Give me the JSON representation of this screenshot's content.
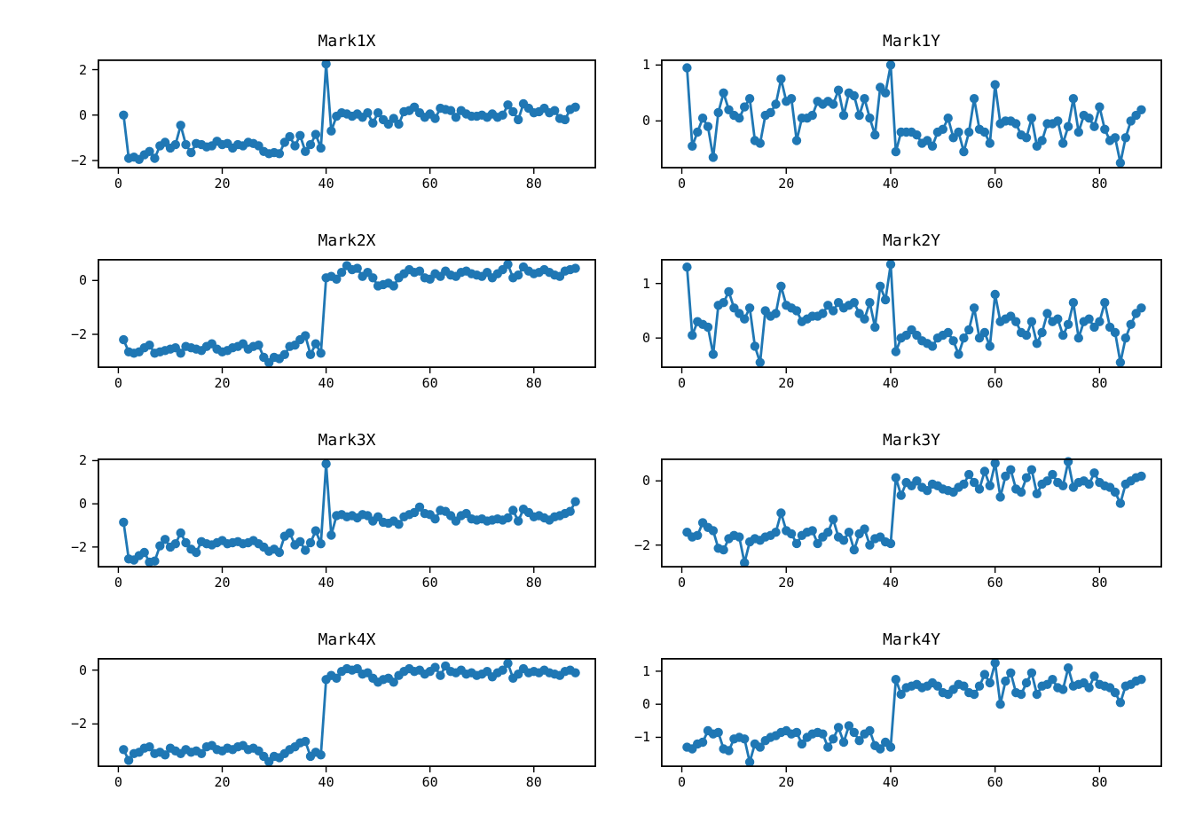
{
  "figure": {
    "background": "#ffffff",
    "series_color": "#1f77b4",
    "axis_color": "#000000"
  },
  "chart_data": [
    {
      "type": "line",
      "title": "Mark1X",
      "marker": "circle",
      "grid": false,
      "legend": null,
      "x_start": 1,
      "x_step": 1,
      "xlim": [
        -4,
        92
      ],
      "ylim": [
        -2.35,
        2.45
      ],
      "xticks": [
        0,
        20,
        40,
        60,
        80
      ],
      "xticklabels": [
        "0",
        "20",
        "40",
        "60",
        "80"
      ],
      "yticks": [
        -2,
        0,
        2
      ],
      "yticklabels": [
        "−2",
        "0",
        "2"
      ],
      "values": [
        0,
        -1.9,
        -1.85,
        -1.95,
        -1.75,
        -1.6,
        -1.9,
        -1.35,
        -1.2,
        -1.45,
        -1.3,
        -0.45,
        -1.3,
        -1.65,
        -1.25,
        -1.3,
        -1.4,
        -1.35,
        -1.15,
        -1.3,
        -1.25,
        -1.45,
        -1.3,
        -1.35,
        -1.2,
        -1.25,
        -1.35,
        -1.6,
        -1.7,
        -1.65,
        -1.7,
        -1.2,
        -0.95,
        -1.35,
        -0.9,
        -1.6,
        -1.3,
        -0.85,
        -1.45,
        2.25,
        -0.7,
        -0.05,
        0.1,
        0.05,
        -0.05,
        0.05,
        -0.1,
        0.1,
        -0.35,
        0.1,
        -0.2,
        -0.4,
        -0.15,
        -0.4,
        0.15,
        0.2,
        0.35,
        0.1,
        -0.1,
        0.05,
        -0.15,
        0.3,
        0.25,
        0.2,
        -0.1,
        0.2,
        0.05,
        -0.05,
        -0.05,
        0,
        -0.1,
        0.05,
        -0.1,
        0,
        0.45,
        0.15,
        -0.2,
        0.5,
        0.3,
        0.1,
        0.15,
        0.3,
        0.1,
        0.2,
        -0.15,
        -0.2,
        0.25,
        0.35
      ]
    },
    {
      "type": "line",
      "title": "Mark1Y",
      "marker": "circle",
      "grid": false,
      "legend": null,
      "x_start": 1,
      "x_step": 1,
      "xlim": [
        -4,
        92
      ],
      "ylim": [
        -0.85,
        1.1
      ],
      "xticks": [
        0,
        20,
        40,
        60,
        80
      ],
      "xticklabels": [
        "0",
        "20",
        "40",
        "60",
        "80"
      ],
      "yticks": [
        0,
        1
      ],
      "yticklabels": [
        "0",
        "1"
      ],
      "values": [
        0.95,
        -0.45,
        -0.2,
        0.05,
        -0.1,
        -0.65,
        0.15,
        0.5,
        0.2,
        0.1,
        0.05,
        0.25,
        0.4,
        -0.35,
        -0.4,
        0.1,
        0.15,
        0.3,
        0.75,
        0.35,
        0.4,
        -0.35,
        0.05,
        0.05,
        0.1,
        0.35,
        0.3,
        0.35,
        0.3,
        0.55,
        0.1,
        0.5,
        0.45,
        0.1,
        0.4,
        0.05,
        -0.25,
        0.6,
        0.5,
        1.0,
        -0.55,
        -0.2,
        -0.2,
        -0.2,
        -0.25,
        -0.4,
        -0.35,
        -0.45,
        -0.2,
        -0.15,
        0.05,
        -0.3,
        -0.2,
        -0.55,
        -0.2,
        0.4,
        -0.15,
        -0.2,
        -0.4,
        0.65,
        -0.05,
        0,
        0,
        -0.05,
        -0.25,
        -0.3,
        0.05,
        -0.45,
        -0.35,
        -0.05,
        -0.05,
        0,
        -0.4,
        -0.1,
        0.4,
        -0.2,
        0.1,
        0.05,
        -0.1,
        0.25,
        -0.15,
        -0.35,
        -0.3,
        -0.75,
        -0.3,
        0,
        0.1,
        0.2
      ]
    },
    {
      "type": "line",
      "title": "Mark2X",
      "marker": "circle",
      "grid": false,
      "legend": null,
      "x_start": 1,
      "x_step": 1,
      "xlim": [
        -4,
        92
      ],
      "ylim": [
        -3.25,
        0.8
      ],
      "xticks": [
        0,
        20,
        40,
        60,
        80
      ],
      "xticklabels": [
        "0",
        "20",
        "40",
        "60",
        "80"
      ],
      "yticks": [
        -2,
        0
      ],
      "yticklabels": [
        "−2",
        "0"
      ],
      "values": [
        -2.2,
        -2.65,
        -2.7,
        -2.65,
        -2.5,
        -2.4,
        -2.7,
        -2.65,
        -2.6,
        -2.55,
        -2.5,
        -2.7,
        -2.45,
        -2.5,
        -2.55,
        -2.6,
        -2.45,
        -2.35,
        -2.55,
        -2.65,
        -2.6,
        -2.5,
        -2.45,
        -2.35,
        -2.55,
        -2.45,
        -2.4,
        -2.85,
        -3.05,
        -2.85,
        -2.9,
        -2.75,
        -2.45,
        -2.4,
        -2.2,
        -2.05,
        -2.75,
        -2.35,
        -2.7,
        0.1,
        0.15,
        0.05,
        0.3,
        0.55,
        0.4,
        0.45,
        0.15,
        0.3,
        0.1,
        -0.2,
        -0.15,
        -0.1,
        -0.2,
        0.1,
        0.25,
        0.4,
        0.3,
        0.35,
        0.1,
        0.05,
        0.25,
        0.15,
        0.35,
        0.2,
        0.15,
        0.3,
        0.35,
        0.25,
        0.2,
        0.15,
        0.3,
        0.1,
        0.25,
        0.4,
        0.6,
        0.1,
        0.2,
        0.5,
        0.35,
        0.25,
        0.3,
        0.4,
        0.3,
        0.2,
        0.15,
        0.35,
        0.4,
        0.45
      ]
    },
    {
      "type": "line",
      "title": "Mark2Y",
      "marker": "circle",
      "grid": false,
      "legend": null,
      "x_start": 1,
      "x_step": 1,
      "xlim": [
        -4,
        92
      ],
      "ylim": [
        -0.55,
        1.45
      ],
      "xticks": [
        0,
        20,
        40,
        60,
        80
      ],
      "xticklabels": [
        "0",
        "20",
        "40",
        "60",
        "80"
      ],
      "yticks": [
        0,
        1
      ],
      "yticklabels": [
        "0",
        "1"
      ],
      "values": [
        1.3,
        0.05,
        0.3,
        0.25,
        0.2,
        -0.3,
        0.6,
        0.65,
        0.85,
        0.55,
        0.45,
        0.35,
        0.55,
        -0.15,
        -0.45,
        0.5,
        0.4,
        0.45,
        0.95,
        0.6,
        0.55,
        0.5,
        0.3,
        0.35,
        0.4,
        0.4,
        0.45,
        0.6,
        0.5,
        0.65,
        0.55,
        0.6,
        0.65,
        0.45,
        0.35,
        0.65,
        0.2,
        0.95,
        0.7,
        1.35,
        -0.25,
        0,
        0.05,
        0.15,
        0.05,
        -0.05,
        -0.1,
        -0.15,
        0,
        0.05,
        0.1,
        -0.05,
        -0.3,
        0,
        0.15,
        0.55,
        0,
        0.1,
        -0.15,
        0.8,
        0.3,
        0.35,
        0.4,
        0.3,
        0.1,
        0.05,
        0.3,
        -0.1,
        0.1,
        0.45,
        0.3,
        0.35,
        0.05,
        0.25,
        0.65,
        0,
        0.3,
        0.35,
        0.2,
        0.3,
        0.65,
        0.2,
        0.1,
        -0.45,
        0,
        0.25,
        0.45,
        0.55
      ]
    },
    {
      "type": "line",
      "title": "Mark3X",
      "marker": "circle",
      "grid": false,
      "legend": null,
      "x_start": 1,
      "x_step": 1,
      "xlim": [
        -4,
        92
      ],
      "ylim": [
        -2.95,
        2.1
      ],
      "xticks": [
        0,
        20,
        40,
        60,
        80
      ],
      "xticklabels": [
        "0",
        "20",
        "40",
        "60",
        "80"
      ],
      "yticks": [
        -2,
        0,
        2
      ],
      "yticklabels": [
        "−2",
        "0",
        "2"
      ],
      "values": [
        -0.85,
        -2.55,
        -2.6,
        -2.4,
        -2.25,
        -2.7,
        -2.65,
        -1.95,
        -1.65,
        -2.0,
        -1.85,
        -1.35,
        -1.8,
        -2.1,
        -2.25,
        -1.75,
        -1.85,
        -1.9,
        -1.8,
        -1.7,
        -1.85,
        -1.8,
        -1.75,
        -1.85,
        -1.8,
        -1.7,
        -1.85,
        -2.0,
        -2.2,
        -2.1,
        -2.25,
        -1.5,
        -1.35,
        -1.9,
        -1.75,
        -2.15,
        -1.8,
        -1.25,
        -1.85,
        1.85,
        -1.45,
        -0.55,
        -0.5,
        -0.6,
        -0.55,
        -0.65,
        -0.5,
        -0.55,
        -0.8,
        -0.6,
        -0.85,
        -0.9,
        -0.8,
        -0.95,
        -0.6,
        -0.5,
        -0.4,
        -0.15,
        -0.45,
        -0.5,
        -0.7,
        -0.3,
        -0.35,
        -0.55,
        -0.8,
        -0.55,
        -0.45,
        -0.7,
        -0.75,
        -0.7,
        -0.8,
        -0.75,
        -0.7,
        -0.75,
        -0.65,
        -0.3,
        -0.8,
        -0.25,
        -0.4,
        -0.6,
        -0.55,
        -0.65,
        -0.75,
        -0.6,
        -0.55,
        -0.45,
        -0.35,
        0.1
      ]
    },
    {
      "type": "line",
      "title": "Mark3Y",
      "marker": "circle",
      "grid": false,
      "legend": null,
      "x_start": 1,
      "x_step": 1,
      "xlim": [
        -4,
        92
      ],
      "ylim": [
        -2.7,
        0.7
      ],
      "xticks": [
        0,
        20,
        40,
        60,
        80
      ],
      "xticklabels": [
        "0",
        "20",
        "40",
        "60",
        "80"
      ],
      "yticks": [
        -2,
        0
      ],
      "yticklabels": [
        "−2",
        "0"
      ],
      "values": [
        -1.6,
        -1.75,
        -1.7,
        -1.3,
        -1.45,
        -1.55,
        -2.1,
        -2.15,
        -1.8,
        -1.7,
        -1.75,
        -2.55,
        -1.9,
        -1.8,
        -1.85,
        -1.75,
        -1.7,
        -1.6,
        -1.0,
        -1.55,
        -1.65,
        -1.95,
        -1.7,
        -1.6,
        -1.55,
        -1.95,
        -1.75,
        -1.6,
        -1.2,
        -1.75,
        -1.85,
        -1.6,
        -2.15,
        -1.65,
        -1.5,
        -2.0,
        -1.8,
        -1.75,
        -1.9,
        -1.95,
        0.1,
        -0.45,
        -0.05,
        -0.15,
        0,
        -0.2,
        -0.3,
        -0.1,
        -0.15,
        -0.25,
        -0.3,
        -0.35,
        -0.2,
        -0.1,
        0.2,
        -0.05,
        -0.25,
        0.3,
        -0.15,
        0.55,
        -0.5,
        0.15,
        0.35,
        -0.25,
        -0.35,
        0.1,
        0.35,
        -0.4,
        -0.1,
        0,
        0.2,
        -0.05,
        -0.15,
        0.6,
        -0.2,
        -0.05,
        0,
        -0.1,
        0.25,
        -0.05,
        -0.15,
        -0.2,
        -0.35,
        -0.7,
        -0.1,
        0,
        0.1,
        0.15
      ]
    },
    {
      "type": "line",
      "title": "Mark4X",
      "marker": "circle",
      "grid": false,
      "legend": null,
      "x_start": 1,
      "x_step": 1,
      "xlim": [
        -4,
        92
      ],
      "ylim": [
        -3.6,
        0.45
      ],
      "xticks": [
        0,
        20,
        40,
        60,
        80
      ],
      "xticklabels": [
        "0",
        "20",
        "40",
        "60",
        "80"
      ],
      "yticks": [
        -2,
        0
      ],
      "yticklabels": [
        "−2",
        "0"
      ],
      "values": [
        -2.95,
        -3.35,
        -3.1,
        -3.05,
        -2.9,
        -2.85,
        -3.1,
        -3.05,
        -3.15,
        -2.9,
        -3.0,
        -3.1,
        -2.95,
        -3.05,
        -3.0,
        -3.1,
        -2.85,
        -2.8,
        -2.95,
        -3.0,
        -2.9,
        -2.95,
        -2.85,
        -2.8,
        -2.95,
        -2.9,
        -3.0,
        -3.2,
        -3.4,
        -3.2,
        -3.25,
        -3.1,
        -2.95,
        -2.85,
        -2.7,
        -2.65,
        -3.2,
        -3.05,
        -3.15,
        -0.35,
        -0.2,
        -0.3,
        -0.05,
        0.05,
        0,
        0.05,
        -0.15,
        -0.1,
        -0.3,
        -0.45,
        -0.35,
        -0.3,
        -0.45,
        -0.2,
        -0.05,
        0.05,
        -0.05,
        0,
        -0.15,
        -0.05,
        0.1,
        -0.2,
        0.15,
        -0.05,
        -0.1,
        0,
        -0.15,
        -0.1,
        -0.2,
        -0.15,
        -0.05,
        -0.25,
        -0.1,
        0,
        0.25,
        -0.3,
        -0.15,
        0.05,
        -0.1,
        -0.05,
        -0.1,
        0,
        -0.1,
        -0.15,
        -0.2,
        -0.05,
        0,
        -0.1
      ]
    },
    {
      "type": "line",
      "title": "Mark4Y",
      "marker": "circle",
      "grid": false,
      "legend": null,
      "x_start": 1,
      "x_step": 1,
      "xlim": [
        -4,
        92
      ],
      "ylim": [
        -1.9,
        1.4
      ],
      "xticks": [
        0,
        20,
        40,
        60,
        80
      ],
      "xticklabels": [
        "0",
        "20",
        "40",
        "60",
        "80"
      ],
      "yticks": [
        -1,
        0,
        1
      ],
      "yticklabels": [
        "−1",
        "0",
        "1"
      ],
      "values": [
        -1.3,
        -1.35,
        -1.2,
        -1.15,
        -0.8,
        -0.9,
        -0.85,
        -1.35,
        -1.4,
        -1.05,
        -1.0,
        -1.05,
        -1.75,
        -1.2,
        -1.3,
        -1.1,
        -1.0,
        -0.95,
        -0.85,
        -0.8,
        -0.9,
        -0.85,
        -1.2,
        -1.0,
        -0.9,
        -0.85,
        -0.9,
        -1.3,
        -1.05,
        -0.7,
        -1.15,
        -0.65,
        -0.85,
        -1.1,
        -0.9,
        -0.8,
        -1.25,
        -1.35,
        -1.15,
        -1.3,
        0.75,
        0.3,
        0.5,
        0.55,
        0.6,
        0.5,
        0.55,
        0.65,
        0.55,
        0.35,
        0.3,
        0.45,
        0.6,
        0.55,
        0.35,
        0.3,
        0.55,
        0.9,
        0.65,
        1.25,
        0,
        0.7,
        0.95,
        0.35,
        0.3,
        0.65,
        0.95,
        0.3,
        0.55,
        0.6,
        0.75,
        0.5,
        0.45,
        1.1,
        0.55,
        0.6,
        0.65,
        0.5,
        0.85,
        0.6,
        0.55,
        0.5,
        0.35,
        0.05,
        0.55,
        0.6,
        0.7,
        0.75
      ]
    }
  ]
}
